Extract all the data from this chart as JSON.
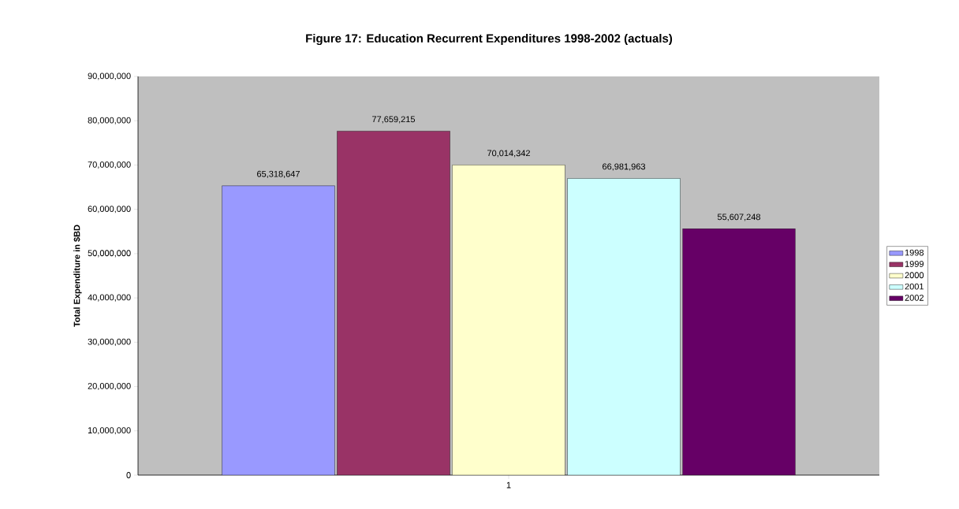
{
  "chart_data": {
    "type": "bar",
    "title": "Figure 17: Education Recurrent Expenditures 1998-2002 (actuals)",
    "ylabel": "Total Expenditure in $BD",
    "categories": [
      "1"
    ],
    "series": [
      {
        "name": "1998",
        "color": "#9999ff",
        "values": [
          65318647
        ],
        "value_labels": [
          "65,318,647"
        ]
      },
      {
        "name": "1999",
        "color": "#993366",
        "values": [
          77659215
        ],
        "value_labels": [
          "77,659,215"
        ]
      },
      {
        "name": "2000",
        "color": "#ffffcc",
        "values": [
          70014342
        ],
        "value_labels": [
          "70,014,342"
        ]
      },
      {
        "name": "2001",
        "color": "#ccffff",
        "values": [
          66981963
        ],
        "value_labels": [
          "66,981,963"
        ]
      },
      {
        "name": "2002",
        "color": "#660066",
        "values": [
          55607248
        ],
        "value_labels": [
          "55,607,248"
        ]
      }
    ],
    "ylim": [
      0,
      90000000
    ],
    "yticks": [
      {
        "value": 0,
        "label": "0"
      },
      {
        "value": 10000000,
        "label": "10,000,000"
      },
      {
        "value": 20000000,
        "label": "20,000,000"
      },
      {
        "value": 30000000,
        "label": "30,000,000"
      },
      {
        "value": 40000000,
        "label": "40,000,000"
      },
      {
        "value": 50000000,
        "label": "50,000,000"
      },
      {
        "value": 60000000,
        "label": "60,000,000"
      },
      {
        "value": 70000000,
        "label": "70,000,000"
      },
      {
        "value": 80000000,
        "label": "80,000,000"
      },
      {
        "value": 90000000,
        "label": "90,000,000"
      }
    ],
    "legend": "right",
    "grid": false
  }
}
